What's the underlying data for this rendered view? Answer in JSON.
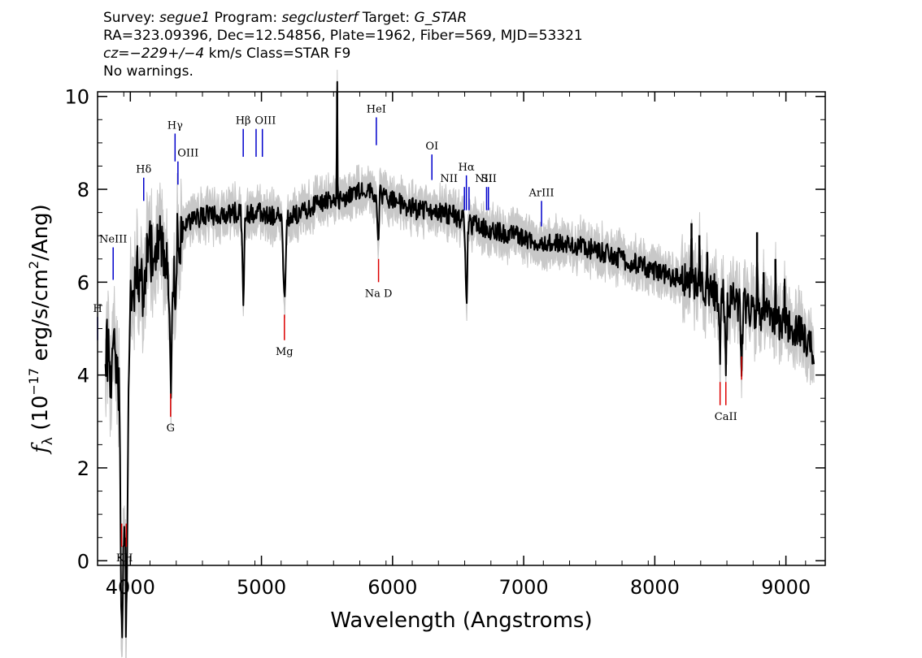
{
  "header": {
    "l1_a": "Survey: ",
    "survey": "segue1",
    "l1_b": " Program: ",
    "program": "segclusterf",
    "l1_c": " Target: ",
    "target": "G_STAR",
    "line2": "RA=323.09396, Dec=12.54856, Plate=1962, Fiber=569, MJD=53321",
    "l3_a": "cz=",
    "cz": "−229+/−4",
    "l3_b": " km/s Class=STAR F9",
    "line4": "No warnings."
  },
  "chart_data": {
    "type": "line",
    "xlabel": "Wavelength (Angstroms)",
    "ylabel_prefix": "f",
    "ylabel_sub": "λ",
    "ylabel_mid": " (10",
    "ylabel_exp": "−17",
    "ylabel_unit": " erg/s/cm",
    "ylabel_sq": "2",
    "ylabel_end": "/Ang)",
    "xlim": [
      3750,
      9300
    ],
    "ylim": [
      -0.1,
      10.1
    ],
    "xticks": [
      4000,
      5000,
      6000,
      7000,
      8000,
      9000
    ],
    "yticks": [
      0,
      2,
      4,
      6,
      8,
      10
    ],
    "series": [
      {
        "color": "#000000",
        "noise_color": "#c8c8c8",
        "continuum": [
          [
            3800,
            4.8
          ],
          [
            3850,
            4.2
          ],
          [
            3900,
            4.5
          ],
          [
            3950,
            1.5
          ],
          [
            3980,
            3.5
          ],
          [
            4000,
            5.6
          ],
          [
            4100,
            6.4
          ],
          [
            4200,
            6.8
          ],
          [
            4300,
            6.7
          ],
          [
            4400,
            7.2
          ],
          [
            4500,
            7.35
          ],
          [
            4600,
            7.45
          ],
          [
            4700,
            7.45
          ],
          [
            4800,
            7.5
          ],
          [
            4900,
            7.45
          ],
          [
            5000,
            7.5
          ],
          [
            5100,
            7.4
          ],
          [
            5200,
            7.35
          ],
          [
            5300,
            7.5
          ],
          [
            5400,
            7.65
          ],
          [
            5500,
            7.75
          ],
          [
            5600,
            7.8
          ],
          [
            5700,
            7.9
          ],
          [
            5800,
            8.0
          ],
          [
            5900,
            7.9
          ],
          [
            6000,
            7.75
          ],
          [
            6100,
            7.65
          ],
          [
            6200,
            7.55
          ],
          [
            6300,
            7.5
          ],
          [
            6400,
            7.5
          ],
          [
            6500,
            7.4
          ],
          [
            6600,
            7.25
          ],
          [
            6800,
            7.1
          ],
          [
            7000,
            6.95
          ],
          [
            7200,
            6.85
          ],
          [
            7400,
            6.8
          ],
          [
            7600,
            6.65
          ],
          [
            7800,
            6.45
          ],
          [
            8000,
            6.25
          ],
          [
            8200,
            6.05
          ],
          [
            8400,
            5.85
          ],
          [
            8600,
            5.6
          ],
          [
            8800,
            5.35
          ],
          [
            9000,
            5.1
          ],
          [
            9100,
            4.95
          ],
          [
            9200,
            4.55
          ]
        ],
        "features": [
          {
            "x": 3934,
            "depth": 4.2,
            "width": 10
          },
          {
            "x": 3969,
            "depth": 3.8,
            "width": 10
          },
          {
            "x": 4102,
            "depth": 1.2,
            "width": 8
          },
          {
            "x": 4307,
            "depth": 2.8,
            "width": 14
          },
          {
            "x": 4341,
            "depth": 1.6,
            "width": 8
          },
          {
            "x": 4861,
            "depth": 1.8,
            "width": 9
          },
          {
            "x": 5175,
            "depth": 1.8,
            "width": 12
          },
          {
            "x": 5890,
            "depth": 1.0,
            "width": 8
          },
          {
            "x": 6563,
            "depth": 1.8,
            "width": 9
          },
          {
            "x": 8498,
            "depth": 1.2,
            "width": 7
          },
          {
            "x": 8542,
            "depth": 1.5,
            "width": 8
          },
          {
            "x": 8662,
            "depth": 1.2,
            "width": 8
          }
        ],
        "spikes": [
          {
            "x": 5577,
            "height": 2.7
          },
          {
            "x": 8280,
            "height": 1.3
          },
          {
            "x": 8340,
            "height": 1.1
          },
          {
            "x": 8400,
            "height": 0.8
          },
          {
            "x": 8780,
            "height": 1.7
          },
          {
            "x": 8830,
            "height": 0.9
          },
          {
            "x": 8920,
            "height": 1.3
          },
          {
            "x": 8990,
            "height": 0.8
          }
        ]
      }
    ],
    "emission_lines": [
      {
        "label": "H",
        "x": 3750,
        "label_x": 3750,
        "y1": 4.75,
        "y2": 5.25,
        "label_y": 5.25,
        "label_pos": "above"
      },
      {
        "label": "NeIII",
        "x": 3869,
        "label_x": 3869,
        "y1": 6.05,
        "y2": 6.75,
        "label_y": 6.75,
        "label_pos": "above"
      },
      {
        "label": "Hδ",
        "x": 4102,
        "label_x": 4102,
        "y1": 7.75,
        "y2": 8.25,
        "label_y": 8.25,
        "label_pos": "above"
      },
      {
        "label": "Hγ",
        "x": 4341,
        "label_x": 4341,
        "y1": 8.6,
        "y2": 9.2,
        "label_y": 9.2,
        "label_pos": "above"
      },
      {
        "label": "OIII",
        "x": 4363,
        "label_x": 4440,
        "y1": 8.1,
        "y2": 8.6,
        "label_y": 8.6,
        "label_pos": "above"
      },
      {
        "label": "Hβ",
        "x": 4861,
        "label_x": 4861,
        "y1": 8.7,
        "y2": 9.3,
        "label_y": 9.3,
        "label_pos": "above"
      },
      {
        "label": "OIII",
        "x": 4959,
        "label_x": 5030,
        "y1": 8.7,
        "y2": 9.3,
        "label_y": 9.3,
        "label_pos": "above"
      },
      {
        "label": "",
        "x": 5007,
        "label_x": 5007,
        "y1": 8.7,
        "y2": 9.3,
        "label_y": 9.3,
        "label_pos": "above"
      },
      {
        "label": "HeI",
        "x": 5876,
        "label_x": 5876,
        "y1": 8.95,
        "y2": 9.55,
        "label_y": 9.55,
        "label_pos": "above"
      },
      {
        "label": "OI",
        "x": 6300,
        "label_x": 6300,
        "y1": 8.2,
        "y2": 8.75,
        "label_y": 8.75,
        "label_pos": "above"
      },
      {
        "label": "NII",
        "x": 6548,
        "label_x": 6430,
        "y1": 7.55,
        "y2": 8.05,
        "label_y": 8.05,
        "label_pos": "above"
      },
      {
        "label": "Hα",
        "x": 6563,
        "label_x": 6563,
        "y1": 7.55,
        "y2": 8.3,
        "label_y": 8.3,
        "label_pos": "above"
      },
      {
        "label": "",
        "x": 6583,
        "label_x": 6583,
        "y1": 7.55,
        "y2": 8.05,
        "label_y": 8.05,
        "label_pos": "above"
      },
      {
        "label": "NII",
        "x": 6717,
        "label_x": 6695,
        "y1": 7.55,
        "y2": 8.05,
        "label_y": 8.05,
        "label_pos": "above"
      },
      {
        "label": "SII",
        "x": 6731,
        "label_x": 6735,
        "y1": 7.55,
        "y2": 8.05,
        "label_y": 8.05,
        "label_pos": "above"
      },
      {
        "label": "ArIII",
        "x": 7136,
        "label_x": 7136,
        "y1": 7.2,
        "y2": 7.75,
        "label_y": 7.75,
        "label_pos": "above"
      }
    ],
    "absorption_lines": [
      {
        "label": "K",
        "x": 3934,
        "label_x": 3922,
        "y1": 0.3,
        "y2": 0.8,
        "label_y": 0.3,
        "label_pos": "below"
      },
      {
        "label": "H",
        "x": 3969,
        "label_x": 3984,
        "y1": 0.3,
        "y2": 0.8,
        "label_y": 0.3,
        "label_pos": "below"
      },
      {
        "label": "G",
        "x": 4307,
        "label_x": 4307,
        "y1": 3.1,
        "y2": 3.6,
        "label_y": 3.1,
        "label_pos": "below"
      },
      {
        "label": "Mg",
        "x": 5175,
        "label_x": 5175,
        "y1": 4.75,
        "y2": 5.3,
        "label_y": 4.75,
        "label_pos": "below"
      },
      {
        "label": "Na D",
        "x": 5893,
        "label_x": 5893,
        "y1": 6.0,
        "y2": 6.5,
        "label_y": 6.0,
        "label_pos": "below"
      },
      {
        "label": "",
        "x": 8498,
        "label_x": 8498,
        "y1": 3.35,
        "y2": 3.85,
        "label_y": 3.35,
        "label_pos": "below"
      },
      {
        "label": "CaII",
        "x": 8542,
        "label_x": 8542,
        "y1": 3.35,
        "y2": 3.85,
        "label_y": 3.35,
        "label_pos": "below"
      },
      {
        "label": "",
        "x": 8662,
        "label_x": 8662,
        "y1": 3.9,
        "y2": 4.4,
        "label_y": 3.9,
        "label_pos": "below"
      }
    ],
    "colors": {
      "emission": "#0000cc",
      "absorption": "#dd0000",
      "axes": "#000000"
    }
  }
}
